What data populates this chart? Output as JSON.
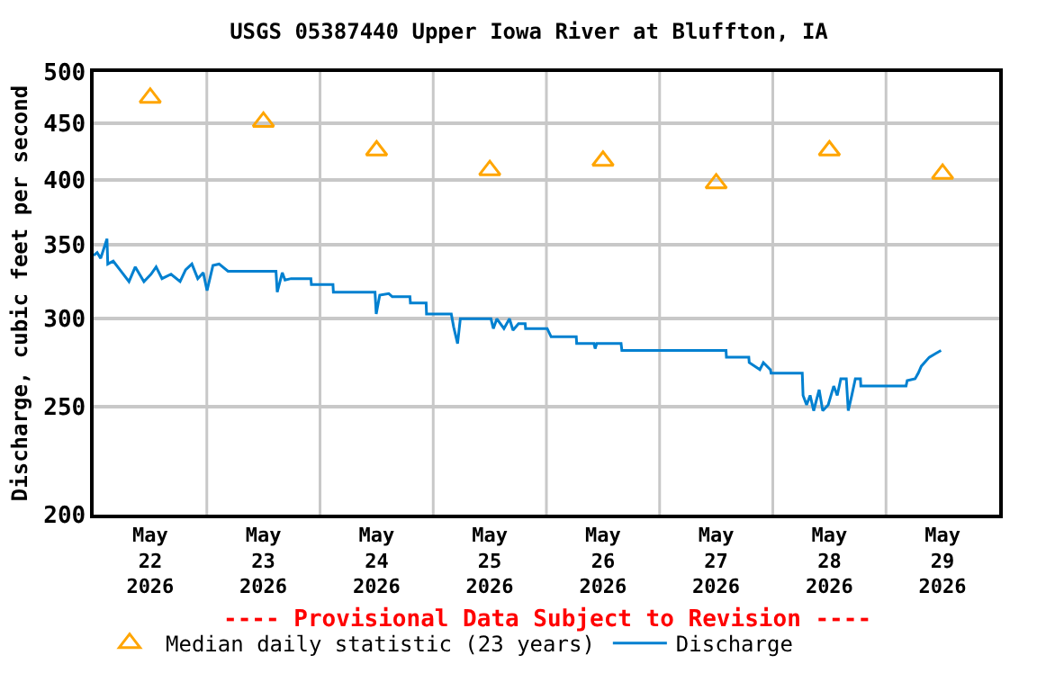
{
  "chart_data": {
    "type": "line",
    "title": "USGS 05387440 Upper Iowa River at Bluffton, IA",
    "ylabel": "Discharge, cubic feet per second",
    "annotations": [
      "---- Provisional Data Subject to Revision ----"
    ],
    "log": true,
    "grid": true,
    "legend": "bottom",
    "xlim": [
      "2026-05-22",
      "2026-05-30"
    ],
    "xticks": [
      {
        "value": "2026-05-22T12:00",
        "label": "May\n22\n2026"
      },
      {
        "value": "2026-05-23T12:00",
        "label": "May\n23\n2026"
      },
      {
        "value": "2026-05-24T12:00",
        "label": "May\n24\n2026"
      },
      {
        "value": "2026-05-25T12:00",
        "label": "May\n25\n2026"
      },
      {
        "value": "2026-05-26T12:00",
        "label": "May\n26\n2026"
      },
      {
        "value": "2026-05-27T12:00",
        "label": "May\n27\n2026"
      },
      {
        "value": "2026-05-28T12:00",
        "label": "May\n28\n2026"
      },
      {
        "value": "2026-05-29T12:00",
        "label": "May\n29\n2026"
      },
      {
        "value": "2026-05-23",
        "label": null
      },
      {
        "value": "2026-05-24",
        "label": null
      },
      {
        "value": "2026-05-25",
        "label": null
      },
      {
        "value": "2026-05-26",
        "label": null
      },
      {
        "value": "2026-05-27",
        "label": null
      },
      {
        "value": "2026-05-28",
        "label": null
      },
      {
        "value": "2026-05-29",
        "label": null
      }
    ],
    "ylim": [
      200,
      500
    ],
    "yticks": [
      200,
      250,
      300,
      350,
      400,
      450,
      500
    ],
    "series": [
      {
        "name": "Median daily statistic (23 years)",
        "type": "scatter",
        "marker": "triangle",
        "color": "#ffa500",
        "x": [
          "2026-05-22T12:00",
          "2026-05-23T12:00",
          "2026-05-24T12:00",
          "2026-05-25T12:00",
          "2026-05-26T12:00",
          "2026-05-27T12:00",
          "2026-05-28T12:00",
          "2026-05-29T12:00"
        ],
        "values": [
          474,
          451,
          425,
          408,
          416,
          397,
          425,
          405
        ]
      },
      {
        "name": "Discharge",
        "type": "line",
        "marker": "none",
        "color": "#0080d0",
        "x": [
          "2026-05-22T00:00",
          "2026-05-22T00:45",
          "2026-05-22T01:30",
          "2026-05-22T02:50",
          "2026-05-22T03:00",
          "2026-05-22T04:10",
          "2026-05-22T05:35",
          "2026-05-22T07:30",
          "2026-05-22T08:50",
          "2026-05-22T10:40",
          "2026-05-22T12:10",
          "2026-05-22T13:15",
          "2026-05-22T14:30",
          "2026-05-22T16:25",
          "2026-05-22T18:20",
          "2026-05-22T19:30",
          "2026-05-22T20:50",
          "2026-05-22T22:05",
          "2026-05-22T23:15",
          "2026-05-23T00:03",
          "2026-05-23T01:18",
          "2026-05-23T02:36",
          "2026-05-23T04:30",
          "2026-05-23T14:40",
          "2026-05-23T14:56",
          "2026-05-23T16:00",
          "2026-05-23T16:35",
          "2026-05-23T17:52",
          "2026-05-23T22:04",
          "2026-05-23T22:10",
          "2026-05-24T02:45",
          "2026-05-24T02:50",
          "2026-05-24T11:40",
          "2026-05-24T11:55",
          "2026-05-24T12:40",
          "2026-05-24T14:35",
          "2026-05-24T15:20",
          "2026-05-24T19:04",
          "2026-05-24T19:10",
          "2026-05-24T22:30",
          "2026-05-24T22:35",
          "2026-05-25T03:50",
          "2026-05-25T04:20",
          "2026-05-25T05:10",
          "2026-05-25T05:45",
          "2026-05-25T12:15",
          "2026-05-25T12:45",
          "2026-05-25T13:30",
          "2026-05-25T15:00",
          "2026-05-25T16:10",
          "2026-05-25T16:55",
          "2026-05-25T18:05",
          "2026-05-25T19:30",
          "2026-05-25T19:35",
          "2026-05-26T00:10",
          "2026-05-26T01:00",
          "2026-05-26T01:20",
          "2026-05-26T06:20",
          "2026-05-26T06:25",
          "2026-05-26T10:05",
          "2026-05-26T10:20",
          "2026-05-26T10:40",
          "2026-05-26T15:50",
          "2026-05-26T16:00",
          "2026-05-27T14:05",
          "2026-05-27T14:10",
          "2026-05-27T18:55",
          "2026-05-27T19:00",
          "2026-05-27T21:15",
          "2026-05-27T22:00",
          "2026-05-27T23:30",
          "2026-05-27T23:38",
          "2026-05-28T06:15",
          "2026-05-28T06:25",
          "2026-05-28T07:10",
          "2026-05-28T07:55",
          "2026-05-28T08:40",
          "2026-05-28T09:50",
          "2026-05-28T10:35",
          "2026-05-28T11:45",
          "2026-05-28T12:55",
          "2026-05-28T13:40",
          "2026-05-28T14:25",
          "2026-05-28T15:35",
          "2026-05-28T16:00",
          "2026-05-28T16:45",
          "2026-05-28T17:30",
          "2026-05-28T18:35",
          "2026-05-28T18:40",
          "2026-05-29T04:15",
          "2026-05-29T04:30",
          "2026-05-29T06:10",
          "2026-05-29T06:50",
          "2026-05-29T07:30",
          "2026-05-29T09:10",
          "2026-05-29T10:25",
          "2026-05-29T11:40"
        ],
        "values": [
          342,
          344,
          340,
          354,
          336,
          338,
          332,
          324,
          334,
          324,
          329,
          334,
          326,
          329,
          324,
          332,
          336,
          326,
          330,
          318,
          335,
          336,
          331,
          331,
          317,
          330,
          325,
          326,
          326,
          322,
          322,
          317,
          317,
          303,
          315,
          316,
          314,
          314,
          310,
          310,
          303,
          303,
          295,
          285,
          300,
          300,
          294,
          300,
          294,
          300,
          293,
          297,
          297,
          294,
          294,
          289,
          289,
          289,
          285,
          285,
          282,
          285,
          285,
          281,
          281,
          277,
          277,
          274,
          270,
          274,
          270,
          268,
          268,
          256,
          251,
          256,
          248,
          259,
          248,
          251,
          261,
          256,
          265,
          265,
          248,
          256,
          265,
          265,
          261,
          261,
          264,
          265,
          268,
          272,
          277,
          279,
          281
        ]
      }
    ]
  }
}
